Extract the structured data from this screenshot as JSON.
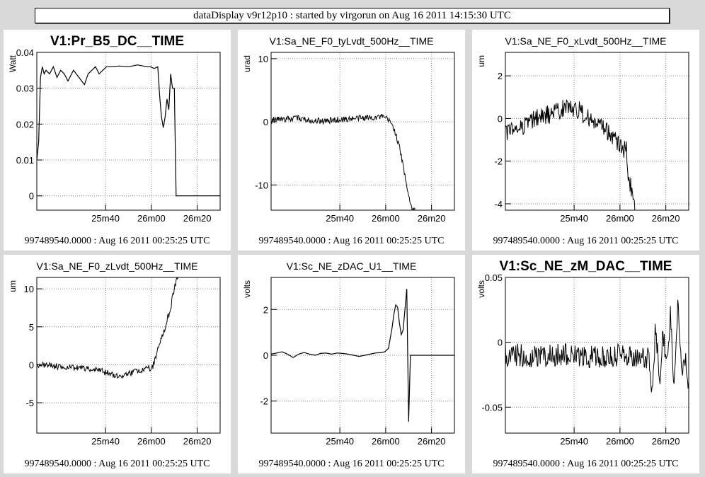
{
  "window_title": "dataDisplay v9r12p10 : started by virgorun on Aug 16 2011 14:15:30 UTC",
  "chart_data": [
    {
      "type": "line",
      "title": "V1:Pr_B5_DC__TIME",
      "title_style": "big",
      "ylabel": "Watt",
      "ylim": [
        -0.004,
        0.04
      ],
      "yticks": [
        0,
        0.01,
        0.02,
        0.03,
        0.04
      ],
      "ytick_labels": [
        "0",
        "0.01",
        "0.02",
        "0.03",
        "0.04"
      ],
      "xlim": [
        0,
        100
      ],
      "xticks": [
        37.5,
        62.5,
        87.5
      ],
      "xtick_labels": [
        "25m40",
        "26m00",
        "26m20"
      ],
      "footer": "997489540.0000 : Aug 16 2011 00:25:25 UTC",
      "series": [
        {
          "x": [
            0,
            1,
            2,
            3,
            4,
            5,
            7,
            9,
            11,
            13,
            15,
            17,
            20,
            23,
            26,
            28,
            30,
            32,
            34,
            36,
            38,
            40,
            45,
            50,
            55,
            60,
            62,
            64,
            66,
            67,
            68,
            69,
            70,
            71,
            72,
            73,
            74,
            75,
            76,
            77,
            78,
            79,
            80,
            82,
            85,
            90,
            95,
            100
          ],
          "y": [
            0.01,
            0.015,
            0.033,
            0.036,
            0.034,
            0.035,
            0.034,
            0.036,
            0.033,
            0.035,
            0.034,
            0.032,
            0.035,
            0.033,
            0.031,
            0.034,
            0.035,
            0.036,
            0.034,
            0.035,
            0.036,
            0.036,
            0.0362,
            0.036,
            0.0365,
            0.036,
            0.036,
            0.0355,
            0.036,
            0.028,
            0.022,
            0.019,
            0.022,
            0.027,
            0.024,
            0.034,
            0.03,
            0.03,
            0,
            0,
            0,
            0,
            0,
            0,
            0,
            0,
            0,
            0
          ]
        }
      ]
    },
    {
      "type": "line",
      "title": "V1:Sa_NE_F0_tyLvdt_500Hz__TIME",
      "title_style": "small",
      "ylabel": "urad",
      "ylim": [
        -14,
        11
      ],
      "yticks": [
        -10,
        0,
        10
      ],
      "ytick_labels": [
        "-10",
        "0",
        "10"
      ],
      "xlim": [
        0,
        100
      ],
      "xticks": [
        37.5,
        62.5,
        87.5
      ],
      "xtick_labels": [
        "25m40",
        "26m00",
        "26m20"
      ],
      "footer": "997489540.0000 : Aug 16 2011 00:25:25 UTC",
      "series": [
        {
          "x": [
            0,
            5,
            10,
            15,
            20,
            25,
            30,
            35,
            40,
            45,
            50,
            55,
            60,
            63,
            65,
            67,
            68,
            69,
            70,
            71,
            72,
            73,
            74,
            75,
            76,
            77,
            78,
            79
          ],
          "y": [
            0.2,
            0.5,
            0.4,
            0.6,
            0.3,
            0.2,
            0.1,
            0.3,
            0.4,
            0.5,
            0.6,
            0.7,
            0.8,
            0.5,
            0,
            -1,
            -2,
            -3,
            -4,
            -5.5,
            -7,
            -8.5,
            -10,
            -11.5,
            -13,
            -14,
            -14,
            -14
          ],
          "noise": 0.5
        }
      ]
    },
    {
      "type": "line",
      "title": "V1:Sa_NE_F0_xLvdt_500Hz__TIME",
      "title_style": "small",
      "ylabel": "um",
      "ylim": [
        -4.3,
        3.1
      ],
      "yticks": [
        -4,
        -2,
        0,
        2
      ],
      "ytick_labels": [
        "-4",
        "-2",
        "0",
        "2"
      ],
      "xlim": [
        0,
        100
      ],
      "xticks": [
        37.5,
        62.5,
        87.5
      ],
      "xtick_labels": [
        "25m40",
        "26m00",
        "26m20"
      ],
      "footer": "997489540.0000 : Aug 16 2011 00:25:25 UTC",
      "series": [
        {
          "x": [
            0,
            5,
            10,
            15,
            20,
            25,
            30,
            35,
            40,
            45,
            50,
            55,
            60,
            63,
            65,
            66,
            67,
            68,
            69,
            70,
            71
          ],
          "y": [
            -0.7,
            -0.5,
            -0.3,
            -0.1,
            0.1,
            0.2,
            0.4,
            0.6,
            0.4,
            0,
            -0.3,
            -0.6,
            -1,
            -1.3,
            -1.5,
            -1.5,
            -2.5,
            -3,
            -3.5,
            -4,
            -4.3
          ],
          "noise": 0.45
        }
      ]
    },
    {
      "type": "line",
      "title": "V1:Sa_NE_F0_zLvdt_500Hz__TIME",
      "title_style": "small",
      "ylabel": "um",
      "ylim": [
        -9,
        11.5
      ],
      "yticks": [
        -5,
        0,
        5,
        10
      ],
      "ytick_labels": [
        "-5",
        "0",
        "5",
        "10"
      ],
      "xlim": [
        0,
        100
      ],
      "xticks": [
        37.5,
        62.5,
        87.5
      ],
      "xtick_labels": [
        "25m40",
        "26m00",
        "26m20"
      ],
      "footer": "997489540.0000 : Aug 16 2011 00:25:25 UTC",
      "series": [
        {
          "x": [
            0,
            5,
            10,
            15,
            20,
            25,
            30,
            35,
            40,
            45,
            50,
            55,
            60,
            63,
            65,
            66,
            67,
            68,
            69,
            70,
            71,
            72,
            73,
            74,
            75,
            76,
            77
          ],
          "y": [
            0,
            0,
            -0.2,
            -0.3,
            -0.4,
            -0.5,
            -0.6,
            -0.8,
            -1.2,
            -1.5,
            -1.2,
            -0.8,
            -0.5,
            -0.4,
            1,
            2,
            3,
            3.5,
            4,
            5,
            6,
            6.5,
            7,
            9,
            10,
            11,
            11.5
          ],
          "noise": 0.4
        }
      ]
    },
    {
      "type": "line",
      "title": "V1:Sc_NE_zDAC_U1__TIME",
      "title_style": "small",
      "ylabel": "volts",
      "ylim": [
        -3.4,
        3.4
      ],
      "yticks": [
        -2,
        0,
        2
      ],
      "ytick_labels": [
        "-2",
        "0",
        "2"
      ],
      "xlim": [
        0,
        100
      ],
      "xticks": [
        37.5,
        62.5,
        87.5
      ],
      "xtick_labels": [
        "25m40",
        "26m00",
        "26m20"
      ],
      "footer": "997489540.0000 : Aug 16 2011 00:25:25 UTC",
      "series": [
        {
          "x": [
            0,
            3,
            6,
            9,
            12,
            15,
            18,
            21,
            24,
            27,
            30,
            33,
            36,
            39,
            42,
            45,
            48,
            51,
            54,
            57,
            60,
            62,
            64,
            66,
            67,
            68,
            69,
            70,
            71,
            72,
            73,
            74,
            75,
            76,
            77,
            78,
            79,
            80,
            85,
            90,
            95,
            100
          ],
          "y": [
            0.05,
            0.1,
            0.15,
            0.05,
            -0.1,
            0.05,
            0.12,
            0.05,
            0,
            0.08,
            0.1,
            0.05,
            0.1,
            0.08,
            0.05,
            0.0,
            -0.05,
            0.0,
            0.05,
            0.1,
            0.12,
            0.15,
            0.3,
            1.2,
            1.8,
            2.2,
            2.1,
            1.4,
            0.9,
            1.1,
            2.0,
            2.9,
            -2.9,
            0,
            0,
            0,
            0,
            0,
            0,
            0,
            0,
            0
          ]
        }
      ]
    },
    {
      "type": "line",
      "title": "V1:Sc_NE_zM_DAC__TIME",
      "title_style": "big",
      "ylabel": "volts",
      "ylim": [
        -0.07,
        0.05
      ],
      "yticks": [
        -0.05,
        0,
        0.05
      ],
      "ytick_labels": [
        "-0.05",
        "0",
        "0.05"
      ],
      "xlim": [
        0,
        100
      ],
      "xticks": [
        37.5,
        62.5,
        87.5
      ],
      "xtick_labels": [
        "25m40",
        "26m00",
        "26m20"
      ],
      "footer": "997489540.0000 : Aug 16 2011 00:25:25 UTC",
      "series": [
        {
          "x": [
            0,
            10,
            20,
            30,
            40,
            50,
            60,
            70,
            75,
            78,
            80,
            82,
            84,
            86,
            88,
            90,
            92,
            94,
            96,
            98,
            100
          ],
          "y": [
            -0.01,
            -0.01,
            -0.011,
            -0.01,
            -0.01,
            -0.012,
            -0.01,
            -0.01,
            -0.011,
            -0.012,
            -0.04,
            0.015,
            -0.03,
            0.01,
            -0.02,
            0.02,
            -0.03,
            0.03,
            -0.02,
            -0.01,
            -0.03
          ],
          "noise": 0.009
        }
      ]
    }
  ]
}
